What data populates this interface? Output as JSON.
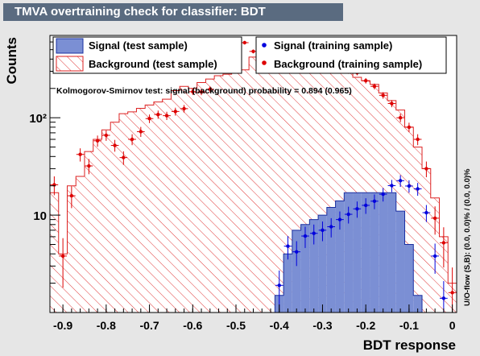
{
  "header": {
    "title": "TMVA overtraining check for classifier: BDT"
  },
  "chart_data": {
    "type": "histogram",
    "title": "TMVA overtraining check for classifier: BDT",
    "xlabel": "BDT response",
    "ylabel": "Counts",
    "xlim": [
      -0.93,
      0.01
    ],
    "ylim": [
      1,
      700
    ],
    "log_y": true,
    "x_ticks": [
      -0.9,
      -0.8,
      -0.7,
      -0.6,
      -0.5,
      -0.4,
      -0.3,
      -0.2,
      -0.1,
      0
    ],
    "x_tick_labels": [
      "-0.9",
      "-0.8",
      "-0.7",
      "-0.6",
      "-0.5",
      "-0.4",
      "-0.3",
      "-0.2",
      "-0.1",
      "0"
    ],
    "y_tick_values": [
      10,
      100
    ],
    "y_tick_labels": [
      "10",
      "10²"
    ],
    "bin_edges": [
      -0.93,
      -0.91,
      -0.89,
      -0.87,
      -0.85,
      -0.83,
      -0.81,
      -0.79,
      -0.77,
      -0.75,
      -0.73,
      -0.71,
      -0.69,
      -0.67,
      -0.65,
      -0.63,
      -0.61,
      -0.59,
      -0.57,
      -0.55,
      -0.53,
      -0.51,
      -0.49,
      -0.47,
      -0.45,
      -0.43,
      -0.41,
      -0.39,
      -0.37,
      -0.35,
      -0.33,
      -0.31,
      -0.29,
      -0.27,
      -0.25,
      -0.23,
      -0.21,
      -0.19,
      -0.17,
      -0.15,
      -0.13,
      -0.11,
      -0.09,
      -0.07,
      -0.05,
      -0.03,
      -0.01,
      0.01
    ],
    "annotation": "Kolmogorov-Smirnov test: signal (background) probability = 0.894 (0.965)",
    "side_label": "U/O-flow (S,B): (0.0, 0.0)% / (0.0, 0.0)%",
    "legend": [
      {
        "label": "Signal (test sample)",
        "style": "filled",
        "color": "#7b8fd4",
        "edge": "#1a2fa0"
      },
      {
        "label": "Signal (training sample)",
        "style": "points",
        "color": "#0000dd"
      },
      {
        "label": "Background (test sample)",
        "style": "hatched",
        "color": "#dd2222"
      },
      {
        "label": "Background (training sample)",
        "style": "points",
        "color": "#dd0000"
      }
    ],
    "series": [
      {
        "name": "Signal (test sample)",
        "kind": "hist_filled",
        "values": [
          0,
          0,
          0,
          0,
          0,
          0,
          0,
          0,
          0,
          0,
          0,
          0,
          0,
          0,
          0,
          0,
          0,
          0,
          0,
          0,
          0,
          0,
          0,
          0,
          0,
          0,
          1.5,
          4,
          7,
          8,
          9,
          10,
          12,
          14,
          17,
          17,
          17,
          17,
          17,
          17,
          11,
          5,
          1.5,
          1,
          1,
          1,
          1
        ]
      },
      {
        "name": "Background (test sample)",
        "kind": "hist_hatched",
        "values": [
          17,
          4,
          20,
          25,
          45,
          60,
          75,
          90,
          110,
          115,
          125,
          135,
          145,
          155,
          190,
          210,
          200,
          230,
          250,
          270,
          280,
          290,
          310,
          420,
          460,
          500,
          440,
          400,
          380,
          360,
          330,
          320,
          310,
          300,
          290,
          260,
          240,
          220,
          180,
          150,
          120,
          80,
          50,
          30,
          15,
          6,
          2
        ]
      },
      {
        "name": "Signal (training sample)",
        "kind": "points",
        "color": "#0000dd",
        "x": [
          -0.4,
          -0.38,
          -0.36,
          -0.34,
          -0.32,
          -0.3,
          -0.28,
          -0.26,
          -0.24,
          -0.22,
          -0.2,
          -0.18,
          -0.16,
          -0.14,
          -0.12,
          -0.1,
          -0.08,
          -0.06,
          -0.04,
          -0.02
        ],
        "y": [
          1.9,
          4.8,
          4.2,
          6.1,
          6.5,
          7.0,
          7.6,
          9.0,
          10.2,
          11.6,
          12.6,
          13.9,
          16.4,
          20.1,
          22.6,
          19.9,
          18.6,
          10.6,
          3.8,
          1.4
        ],
        "err": [
          0.8,
          1.3,
          1.2,
          1.5,
          1.5,
          1.6,
          1.7,
          1.9,
          2.0,
          2.2,
          2.3,
          2.4,
          2.6,
          2.9,
          3.1,
          2.9,
          2.8,
          2.1,
          1.3,
          0.7
        ]
      },
      {
        "name": "Background (training sample)",
        "kind": "points",
        "color": "#dd0000",
        "x": [
          -0.92,
          -0.9,
          -0.88,
          -0.86,
          -0.84,
          -0.82,
          -0.8,
          -0.78,
          -0.76,
          -0.74,
          -0.72,
          -0.7,
          -0.68,
          -0.66,
          -0.64,
          -0.62,
          -0.6,
          -0.58,
          -0.56,
          -0.54,
          -0.52,
          -0.5,
          -0.48,
          -0.46,
          -0.44,
          -0.42,
          -0.4,
          -0.38,
          -0.36,
          -0.34,
          -0.32,
          -0.3,
          -0.28,
          -0.26,
          -0.24,
          -0.22,
          -0.2,
          -0.18,
          -0.16,
          -0.14,
          -0.12,
          -0.1,
          -0.08,
          -0.06,
          -0.04,
          -0.02,
          0
        ],
        "y": [
          20.5,
          3.8,
          15.8,
          42,
          32,
          58,
          66,
          52,
          39,
          60,
          72,
          98,
          108,
          105,
          116,
          124,
          185,
          184,
          196,
          360,
          310,
          410,
          590,
          480,
          470,
          460,
          530,
          500,
          480,
          490,
          450,
          430,
          400,
          380,
          300,
          290,
          240,
          210,
          170,
          140,
          100,
          80,
          60,
          30,
          9.3,
          5.2,
          1.6
        ],
        "err": [
          4.5,
          2.0,
          4.0,
          6.5,
          5.7,
          7.6,
          8.1,
          7.2,
          6.2,
          7.7,
          8.5,
          9.9,
          10.4,
          10.2,
          10.8,
          11.1,
          13.6,
          13.6,
          14.0,
          19,
          17.6,
          20.2,
          24.3,
          21.9,
          21.7,
          21.4,
          23,
          22.4,
          21.9,
          22.1,
          21.2,
          20.7,
          20,
          19.5,
          17.3,
          17,
          15.5,
          14.5,
          13,
          11.8,
          10,
          8.9,
          7.7,
          5.5,
          3.0,
          2.3,
          1.3
        ]
      }
    ]
  }
}
